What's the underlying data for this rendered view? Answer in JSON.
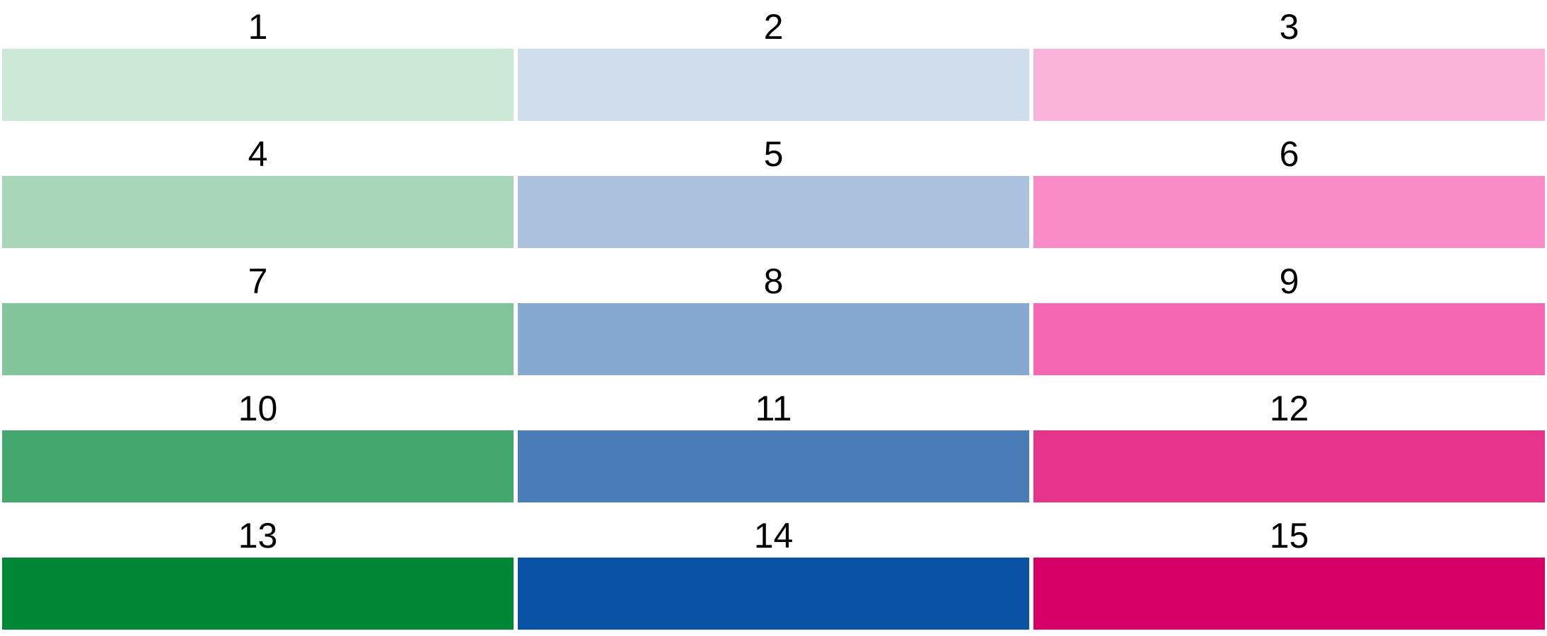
{
  "swatches": [
    {
      "label": "1",
      "color": "#CCE9D8"
    },
    {
      "label": "2",
      "color": "#D0DDEC"
    },
    {
      "label": "3",
      "color": "#FAB4D9"
    },
    {
      "label": "4",
      "color": "#A8D6B9"
    },
    {
      "label": "5",
      "color": "#AAC2DE"
    },
    {
      "label": "6",
      "color": "#F98CC6"
    },
    {
      "label": "7",
      "color": "#82C59B"
    },
    {
      "label": "8",
      "color": "#87A9D1"
    },
    {
      "label": "9",
      "color": "#F567B3"
    },
    {
      "label": "10",
      "color": "#43A86D"
    },
    {
      "label": "11",
      "color": "#4A7CB8"
    },
    {
      "label": "12",
      "color": "#E6338C"
    },
    {
      "label": "13",
      "color": "#008837"
    },
    {
      "label": "14",
      "color": "#0A52A3"
    },
    {
      "label": "15",
      "color": "#D70066"
    }
  ]
}
